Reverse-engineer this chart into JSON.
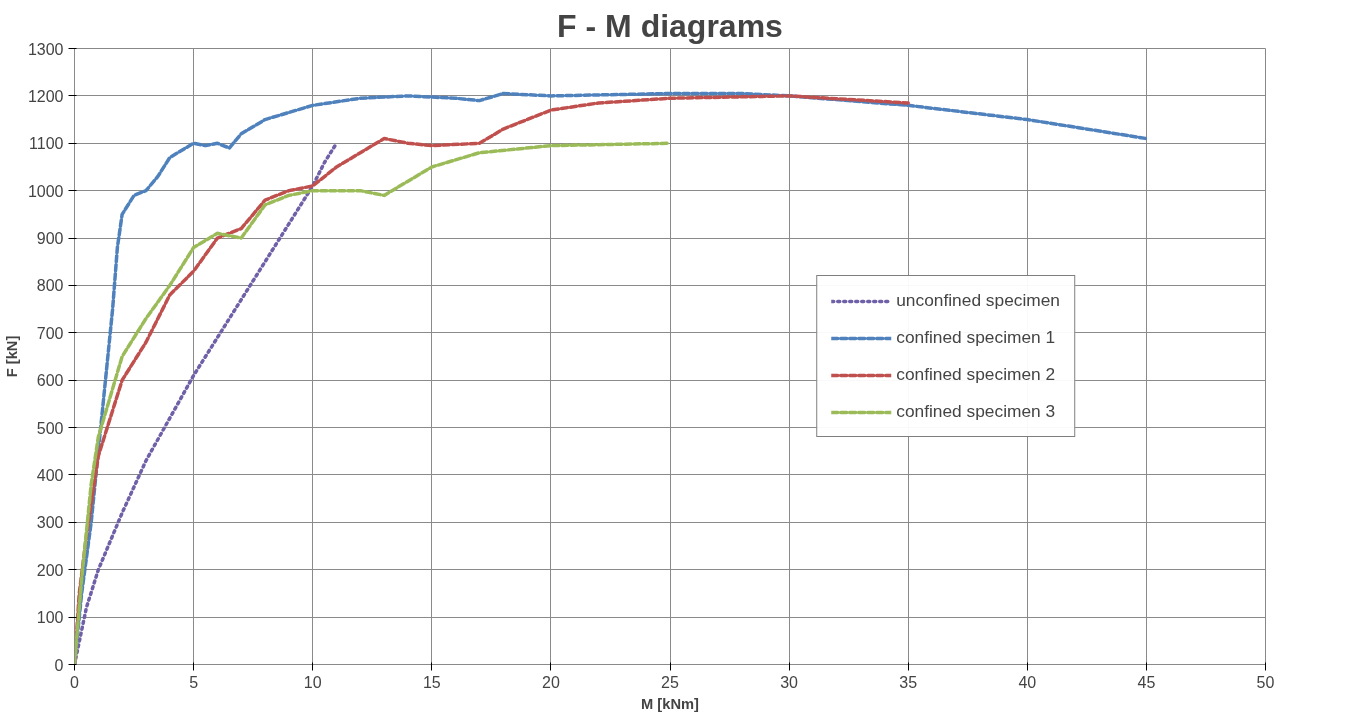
{
  "chart_data": {
    "type": "line",
    "title": "F - M diagrams",
    "xlabel": "M [kNm]",
    "ylabel": "F [kN]",
    "xlim": [
      0,
      50
    ],
    "xticks": [
      0,
      5,
      10,
      15,
      20,
      25,
      30,
      35,
      40,
      45,
      50
    ],
    "ylim": [
      0,
      1300
    ],
    "yticks": [
      0,
      100,
      200,
      300,
      400,
      500,
      600,
      700,
      800,
      900,
      1000,
      1100,
      1200,
      1300
    ],
    "grid": true,
    "legend": "right",
    "marker": "none",
    "series": [
      {
        "name": "unconfined specimen",
        "color": "#7060a8",
        "line_style": "dotted",
        "x": [
          0,
          0.5,
          1,
          2,
          3,
          4,
          5,
          6,
          7,
          8,
          9,
          10,
          10.5,
          11
        ],
        "values": [
          0,
          120,
          200,
          320,
          430,
          520,
          610,
          690,
          770,
          850,
          930,
          1010,
          1060,
          1100
        ]
      },
      {
        "name": "confined specimen 1",
        "color": "#4f81bd",
        "line_style": "dashed",
        "x": [
          0,
          0.3,
          0.7,
          1,
          1.3,
          1.6,
          1.8,
          2,
          2.5,
          3,
          3.5,
          4,
          5,
          5.5,
          6,
          6.5,
          7,
          8,
          10,
          12,
          14,
          16,
          17,
          18,
          20,
          25,
          28,
          30,
          35,
          40,
          45
        ],
        "values": [
          0,
          150,
          300,
          450,
          600,
          750,
          880,
          950,
          990,
          1000,
          1030,
          1070,
          1100,
          1095,
          1100,
          1090,
          1120,
          1150,
          1180,
          1195,
          1200,
          1195,
          1190,
          1205,
          1200,
          1205,
          1205,
          1200,
          1180,
          1150,
          1110
        ]
      },
      {
        "name": "confined specimen 2",
        "color": "#c0504d",
        "line_style": "dashed",
        "x": [
          0,
          0.2,
          0.5,
          1,
          1.5,
          2,
          3,
          4,
          5,
          6,
          7,
          8,
          9,
          10,
          11,
          12,
          13,
          14,
          15,
          17,
          18,
          20,
          22,
          25,
          30,
          35
        ],
        "values": [
          0,
          150,
          270,
          440,
          520,
          600,
          680,
          780,
          830,
          900,
          920,
          980,
          1000,
          1010,
          1050,
          1080,
          1110,
          1100,
          1095,
          1100,
          1130,
          1170,
          1185,
          1195,
          1200,
          1185
        ]
      },
      {
        "name": "confined specimen 3",
        "color": "#9bbb59",
        "line_style": "dashed",
        "x": [
          0,
          0.3,
          0.7,
          1,
          2,
          3,
          4,
          5,
          6,
          7,
          8,
          9,
          10,
          11,
          12,
          13,
          14,
          15,
          17,
          20,
          25
        ],
        "values": [
          0,
          180,
          380,
          480,
          650,
          730,
          800,
          880,
          910,
          900,
          970,
          990,
          1000,
          1000,
          1000,
          990,
          1020,
          1050,
          1080,
          1095,
          1100
        ]
      }
    ]
  }
}
